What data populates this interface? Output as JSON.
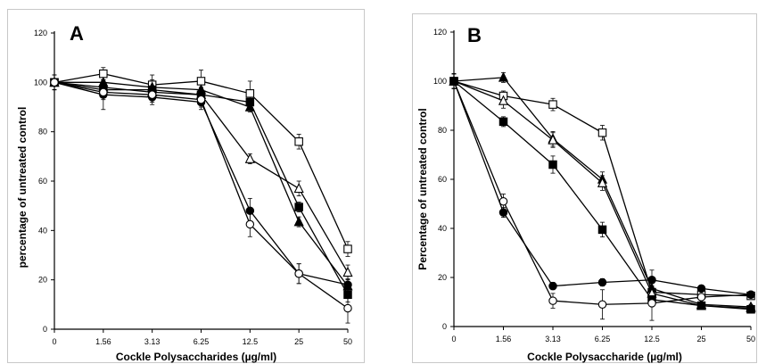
{
  "chart_data": [
    {
      "panel": "A",
      "type": "line",
      "categories": [
        "0",
        "1.56",
        "3.13",
        "6.25",
        "12.5",
        "25",
        "50"
      ],
      "xlabel": "Cockle Polysaccharides (µg/ml)",
      "ylabel": "percentage of untreated control",
      "ylim": [
        0,
        120
      ],
      "yticks": [
        0,
        20,
        40,
        60,
        80,
        100,
        120
      ],
      "grid": false,
      "series": [
        {
          "marker": "open-square",
          "values": [
            100,
            103.5,
            99,
            100.5,
            95.5,
            76,
            32.5
          ],
          "errors": [
            3,
            2.5,
            4,
            4.5,
            5,
            3,
            3
          ]
        },
        {
          "marker": "open-triangle",
          "values": [
            100,
            98,
            96,
            95,
            69,
            57,
            23
          ],
          "errors": [
            3,
            3,
            3,
            3,
            2,
            3,
            3
          ]
        },
        {
          "marker": "filled-triangle",
          "values": [
            100,
            100,
            98,
            97,
            90,
            43.5,
            17.5
          ],
          "errors": [
            3,
            3,
            3,
            3,
            2,
            2,
            3
          ]
        },
        {
          "marker": "filled-square",
          "values": [
            100,
            97,
            97,
            95,
            92,
            49.5,
            14
          ],
          "errors": [
            3,
            3,
            3,
            3,
            2,
            2,
            3
          ]
        },
        {
          "marker": "filled-circle",
          "values": [
            100,
            95,
            94,
            92,
            48,
            22.5,
            18
          ],
          "errors": [
            3,
            6,
            3,
            3,
            5,
            4,
            2
          ]
        },
        {
          "marker": "open-circle",
          "values": [
            100,
            96,
            95,
            93,
            42.5,
            22.5,
            8.5
          ],
          "errors": [
            3,
            3,
            3,
            3,
            5,
            4,
            6
          ]
        }
      ]
    },
    {
      "panel": "B",
      "type": "line",
      "categories": [
        "0",
        "1.56",
        "3.13",
        "6.25",
        "12.5",
        "25",
        "50"
      ],
      "xlabel": "Cockle Polysaccharide (µg/ml)",
      "ylabel": "Percentage of untreated control",
      "ylim": [
        0,
        120
      ],
      "yticks": [
        0,
        20,
        40,
        60,
        80,
        100,
        120
      ],
      "grid": false,
      "series": [
        {
          "marker": "open-square",
          "values": [
            100,
            94,
            90.5,
            79,
            14,
            13,
            12.5
          ],
          "errors": [
            3,
            2,
            2.5,
            3,
            2,
            1,
            1
          ]
        },
        {
          "marker": "filled-triangle",
          "values": [
            100,
            101.5,
            76.5,
            60,
            15.5,
            9,
            8
          ],
          "errors": [
            3,
            2,
            3,
            3,
            2,
            1,
            1
          ]
        },
        {
          "marker": "open-triangle",
          "values": [
            100,
            92,
            76,
            58.5,
            13.5,
            8.5,
            7.5
          ],
          "errors": [
            3,
            3,
            3,
            3,
            2,
            1,
            1
          ]
        },
        {
          "marker": "filled-square",
          "values": [
            100,
            83.5,
            66,
            39.5,
            11,
            8.5,
            7
          ],
          "errors": [
            3,
            2,
            3.5,
            3,
            2,
            1,
            1
          ]
        },
        {
          "marker": "open-circle",
          "values": [
            100,
            51,
            10.5,
            9,
            9.5,
            12,
            13
          ],
          "errors": [
            3,
            3,
            3,
            6,
            7,
            2,
            1
          ]
        },
        {
          "marker": "filled-circle",
          "values": [
            100,
            46.5,
            16.5,
            18,
            19,
            15.5,
            13
          ],
          "errors": [
            3,
            2,
            1.5,
            1.5,
            4,
            1,
            1
          ]
        }
      ]
    }
  ]
}
